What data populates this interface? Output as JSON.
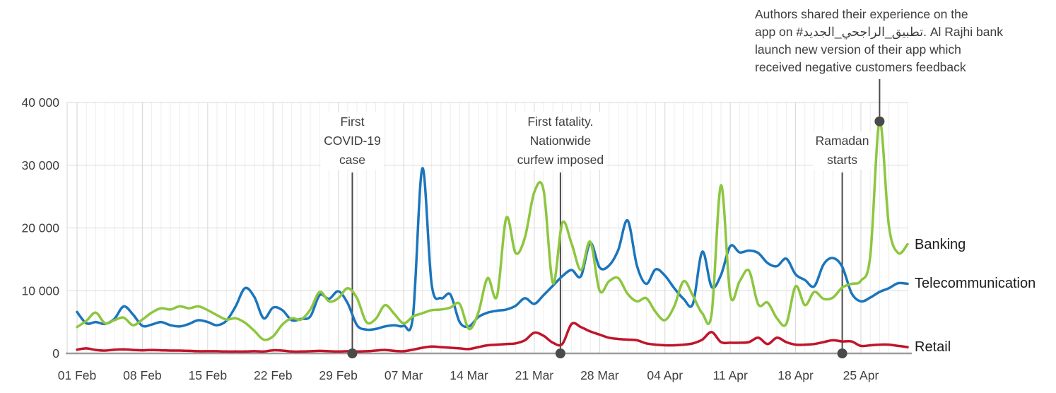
{
  "chart_data": {
    "type": "line",
    "title": "",
    "xlabel": "",
    "ylabel": "",
    "ylim": [
      0,
      40000
    ],
    "y_ticks": [
      0,
      10000,
      20000,
      30000,
      40000
    ],
    "y_tick_labels": [
      "0",
      "10 000",
      "20 000",
      "30 000",
      "40 000"
    ],
    "x_tick_labels": [
      "01 Feb",
      "08 Feb",
      "15 Feb",
      "22 Feb",
      "29 Feb",
      "07 Mar",
      "14 Mar",
      "21 Mar",
      "28 Mar",
      "04 Apr",
      "11 Apr",
      "18 Apr",
      "25 Apr"
    ],
    "grid": {
      "horizontal": true,
      "vertical_daily": true,
      "vertical_weekly": true
    },
    "legend_position": "right-end-of-lines",
    "dates": [
      "01 Feb",
      "02 Feb",
      "03 Feb",
      "04 Feb",
      "05 Feb",
      "06 Feb",
      "07 Feb",
      "08 Feb",
      "09 Feb",
      "10 Feb",
      "11 Feb",
      "12 Feb",
      "13 Feb",
      "14 Feb",
      "15 Feb",
      "16 Feb",
      "17 Feb",
      "18 Feb",
      "19 Feb",
      "20 Feb",
      "21 Feb",
      "22 Feb",
      "23 Feb",
      "24 Feb",
      "25 Feb",
      "26 Feb",
      "27 Feb",
      "28 Feb",
      "29 Feb",
      "01 Mar",
      "02 Mar",
      "03 Mar",
      "04 Mar",
      "05 Mar",
      "06 Mar",
      "07 Mar",
      "08 Mar",
      "09 Mar",
      "10 Mar",
      "11 Mar",
      "12 Mar",
      "13 Mar",
      "14 Mar",
      "15 Mar",
      "16 Mar",
      "17 Mar",
      "18 Mar",
      "19 Mar",
      "20 Mar",
      "21 Mar",
      "22 Mar",
      "23 Mar",
      "24 Mar",
      "25 Mar",
      "26 Mar",
      "27 Mar",
      "28 Mar",
      "29 Mar",
      "30 Mar",
      "31 Mar",
      "01 Apr",
      "02 Apr",
      "03 Apr",
      "04 Apr",
      "05 Apr",
      "06 Apr",
      "07 Apr",
      "08 Apr",
      "09 Apr",
      "10 Apr",
      "11 Apr",
      "12 Apr",
      "13 Apr",
      "14 Apr",
      "15 Apr",
      "16 Apr",
      "17 Apr",
      "18 Apr",
      "19 Apr",
      "20 Apr",
      "21 Apr",
      "22 Apr",
      "23 Apr",
      "24 Apr",
      "25 Apr",
      "26 Apr",
      "27 Apr",
      "28 Apr",
      "29 Apr",
      "30 Apr"
    ],
    "series": [
      {
        "name": "Banking",
        "color": "#8DC63F",
        "values": [
          4200,
          5200,
          6500,
          4800,
          5300,
          5700,
          4500,
          5400,
          6500,
          7200,
          7000,
          7500,
          7200,
          7500,
          6900,
          6100,
          5400,
          5600,
          4900,
          3600,
          2200,
          2700,
          4600,
          5600,
          5400,
          7000,
          9800,
          8300,
          8800,
          10400,
          8800,
          5000,
          5500,
          7700,
          6300,
          4800,
          5900,
          6400,
          6900,
          7000,
          7300,
          7900,
          3900,
          6500,
          12000,
          9100,
          21600,
          16000,
          18500,
          25700,
          26000,
          11200,
          20800,
          17500,
          13300,
          17800,
          10000,
          11500,
          12000,
          9500,
          8300,
          8800,
          6600,
          5300,
          7500,
          11500,
          9200,
          6400,
          6300,
          26800,
          9300,
          11500,
          13200,
          7800,
          8100,
          5600,
          4700,
          10700,
          7700,
          9800,
          8700,
          8900,
          10500,
          11100,
          11600,
          15500,
          37000,
          20300,
          16000,
          17400
        ]
      },
      {
        "name": "Telecommunication",
        "color": "#1B75BC",
        "values": [
          6600,
          4800,
          5000,
          4700,
          5500,
          7500,
          6200,
          4400,
          4600,
          5000,
          4500,
          4300,
          4700,
          5300,
          5000,
          4500,
          5200,
          7500,
          10400,
          9000,
          5600,
          7300,
          6900,
          5300,
          5500,
          5900,
          9300,
          8700,
          9900,
          8000,
          4500,
          3800,
          3900,
          4300,
          4500,
          4400,
          6000,
          29500,
          11000,
          8800,
          9400,
          5000,
          4300,
          5800,
          6500,
          6800,
          7000,
          7600,
          8800,
          7900,
          9300,
          10800,
          12300,
          13300,
          12300,
          17600,
          13700,
          14000,
          16500,
          21200,
          14000,
          11100,
          13400,
          12400,
          10400,
          8700,
          7900,
          16200,
          10600,
          12500,
          17100,
          16100,
          16400,
          16000,
          14400,
          13900,
          15100,
          12600,
          11700,
          10700,
          14200,
          15200,
          13800,
          9600,
          8300,
          8900,
          9800,
          10400,
          11200,
          11100
        ]
      },
      {
        "name": "Retail",
        "color": "#C0152B",
        "values": [
          600,
          800,
          550,
          450,
          600,
          650,
          550,
          500,
          550,
          500,
          450,
          450,
          400,
          350,
          350,
          350,
          300,
          300,
          300,
          350,
          300,
          500,
          450,
          300,
          300,
          350,
          400,
          350,
          300,
          350,
          300,
          350,
          450,
          550,
          400,
          350,
          600,
          900,
          1100,
          1000,
          900,
          800,
          700,
          1000,
          1300,
          1400,
          1500,
          1600,
          2100,
          3300,
          2800,
          1700,
          1500,
          4700,
          4200,
          3500,
          3000,
          2500,
          2300,
          2200,
          2100,
          1600,
          1400,
          1300,
          1300,
          1400,
          1600,
          2200,
          3400,
          1800,
          1700,
          1700,
          1800,
          2500,
          1500,
          2500,
          1800,
          1400,
          1400,
          1500,
          1800,
          2100,
          1900,
          1900,
          1200,
          1300,
          1400,
          1400,
          1200,
          1000
        ]
      }
    ],
    "events": [
      {
        "lines": [
          "First",
          "COVID-19",
          "case"
        ],
        "day_index": 29.5
      },
      {
        "lines": [
          "First fatality.",
          "Nationwide",
          "curfew imposed"
        ],
        "day_index": 51.8
      },
      {
        "lines": [
          "Ramadan",
          "starts"
        ],
        "day_index": 82
      }
    ],
    "annotation": {
      "lines": [
        "Authors shared their experience on the",
        "app on #تطبيق_الراجحي_الجديد. Al Rajhi bank",
        "launch new version of their app which",
        "received negative customers feedback"
      ],
      "text": "Authors shared their experience on the app on #تطبيق_الراجحي_الجديد. Al Rajhi bank launch new version of their app which received negative customers feedback",
      "marker_day_index": 86,
      "marker_value": 37000
    },
    "colors": {
      "event_line": "#4a4a4a",
      "axis": "#9e9e9e",
      "grid_daily": "#ededed",
      "grid_weekly": "#d6d6d6",
      "grid_horizontal": "#dadada",
      "tick_text": "#3f3f3f"
    }
  }
}
